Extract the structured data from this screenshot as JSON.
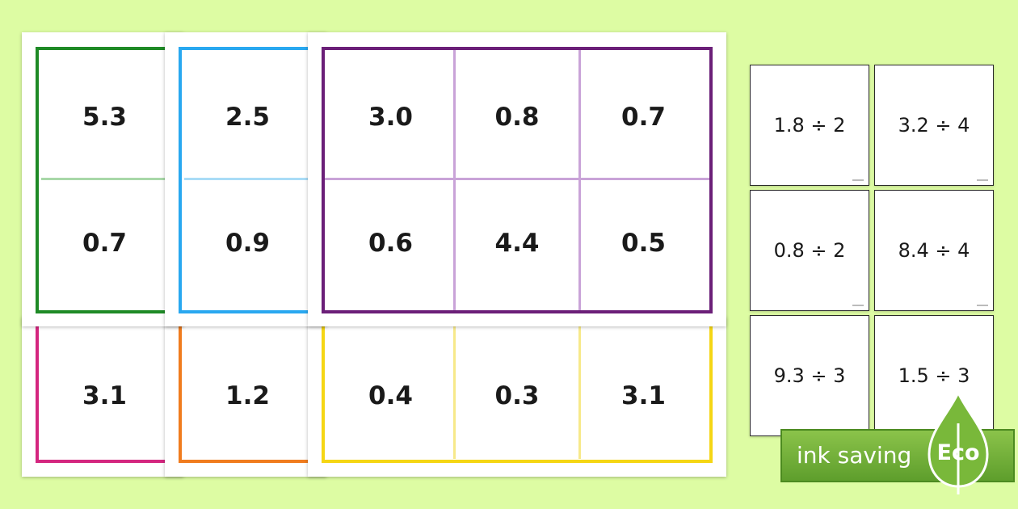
{
  "colors": {
    "background": "#ddfca3",
    "green": "#1e8a26",
    "blue": "#29a8f0",
    "purple": "#6b1f78",
    "pink": "#d4267f",
    "orange": "#f07c1e",
    "yellow": "#f5d614",
    "eco_green": "#6aa832"
  },
  "bottom_sheets": {
    "pink": [
      "3.1"
    ],
    "orange": [
      "1.2"
    ],
    "yellow": [
      "0.4",
      "0.3",
      "3.1"
    ]
  },
  "green_sheet": [
    "5.3",
    "0.7"
  ],
  "blue_sheet": [
    "2.5",
    "0.9"
  ],
  "purple_sheet": [
    "3.0",
    "0.8",
    "0.7",
    "0.6",
    "4.4",
    "0.5"
  ],
  "question_cards": [
    "1.8 ÷ 2",
    "3.2 ÷ 4",
    "0.8 ÷ 2",
    "8.4 ÷ 4",
    "9.3 ÷ 3",
    "1.5 ÷ 3"
  ],
  "badge": {
    "text": "ink saving",
    "leaf_label": "Eco",
    "icon": "leaf-icon"
  }
}
